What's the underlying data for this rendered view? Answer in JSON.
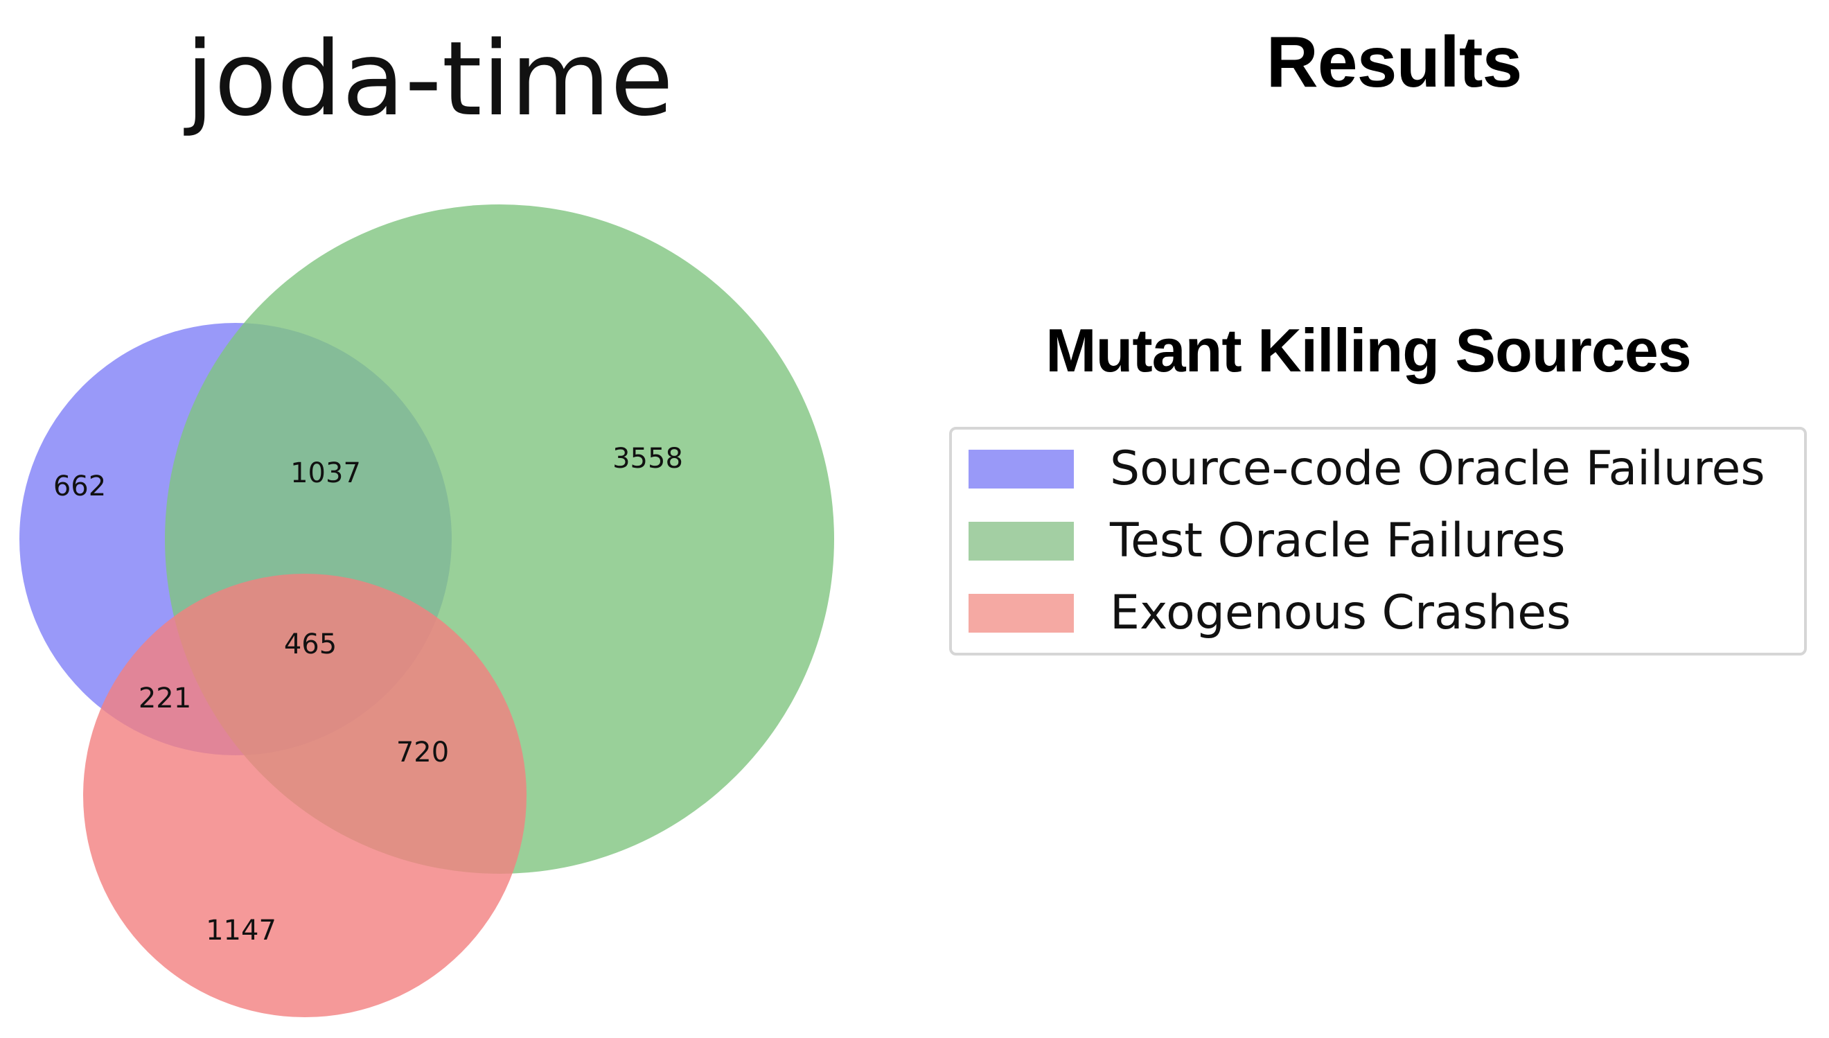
{
  "diagram": {
    "title": "joda-time",
    "sets": [
      {
        "key": "source",
        "label": "Source-code Oracle Failures",
        "color": "#7f7ff7",
        "legend_color": "#9999f8"
      },
      {
        "key": "test",
        "label": "Test Oracle Failures",
        "color": "#7fc47f",
        "legend_color": "#a3cfa3"
      },
      {
        "key": "crash",
        "label": "Exogenous Crashes",
        "color": "#f28080",
        "legend_color": "#f5a9a3"
      }
    ],
    "regions": [
      {
        "sets": [
          "source"
        ],
        "value": "662"
      },
      {
        "sets": [
          "source",
          "test"
        ],
        "value": "1037"
      },
      {
        "sets": [
          "test"
        ],
        "value": "3558"
      },
      {
        "sets": [
          "source",
          "test",
          "crash"
        ],
        "value": "465"
      },
      {
        "sets": [
          "source",
          "crash"
        ],
        "value": "221"
      },
      {
        "sets": [
          "test",
          "crash"
        ],
        "value": "720"
      },
      {
        "sets": [
          "crash"
        ],
        "value": "1147"
      }
    ]
  },
  "results": {
    "title": "Results",
    "legend_title": "Mutant Killing Sources",
    "legend": [
      {
        "label": "Source-code Oracle Failures",
        "color": "#9999f8"
      },
      {
        "label": "Test Oracle Failures",
        "color": "#a3cfa3"
      },
      {
        "label": "Exogenous Crashes",
        "color": "#f5a9a3"
      }
    ]
  }
}
